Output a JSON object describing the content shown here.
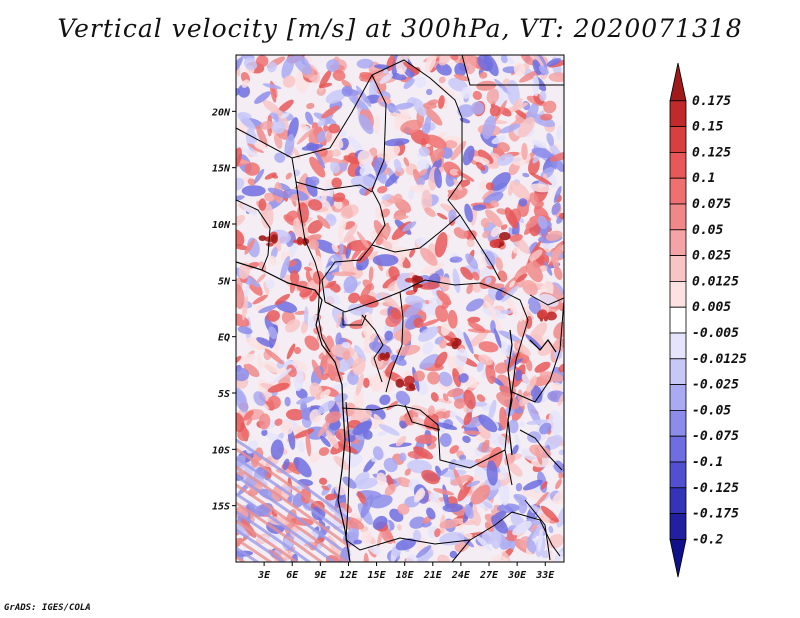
{
  "title": "Vertical velocity [m/s] at 300hPa, VT: 2020071318",
  "credit": "GrADS: IGES/COLA",
  "map": {
    "lon_range": [
      0,
      35
    ],
    "lat_range": [
      -20,
      25
    ],
    "lon_ticks": [
      {
        "label": "3E",
        "value": 3
      },
      {
        "label": "6E",
        "value": 6
      },
      {
        "label": "9E",
        "value": 9
      },
      {
        "label": "12E",
        "value": 12
      },
      {
        "label": "15E",
        "value": 15
      },
      {
        "label": "18E",
        "value": 18
      },
      {
        "label": "21E",
        "value": 21
      },
      {
        "label": "24E",
        "value": 24
      },
      {
        "label": "27E",
        "value": 27
      },
      {
        "label": "30E",
        "value": 30
      },
      {
        "label": "33E",
        "value": 33
      }
    ],
    "lat_ticks": [
      {
        "label": "20N",
        "value": 20
      },
      {
        "label": "15N",
        "value": 15
      },
      {
        "label": "10N",
        "value": 10
      },
      {
        "label": "5N",
        "value": 5
      },
      {
        "label": "EQ",
        "value": 0
      },
      {
        "label": "5S",
        "value": -5
      },
      {
        "label": "10S",
        "value": -10
      },
      {
        "label": "15S",
        "value": -15
      }
    ]
  },
  "colorbar": {
    "labels": [
      "0.175",
      "0.15",
      "0.125",
      "0.1",
      "0.075",
      "0.05",
      "0.025",
      "0.0125",
      "0.005",
      "-0.005",
      "-0.0125",
      "-0.025",
      "-0.05",
      "-0.075",
      "-0.1",
      "-0.125",
      "-0.175",
      "-0.2"
    ],
    "colors": [
      "#a01a1a",
      "#c02a2a",
      "#d84040",
      "#e85858",
      "#ee7070",
      "#f08888",
      "#f4a4a4",
      "#f8c4c4",
      "#fce2e2",
      "#ffffff",
      "#e4e4fc",
      "#c8c8f8",
      "#aaaaf2",
      "#8c8cea",
      "#6e6ee0",
      "#5050d0",
      "#3434b8",
      "#2020a0",
      "#10108a"
    ]
  }
}
